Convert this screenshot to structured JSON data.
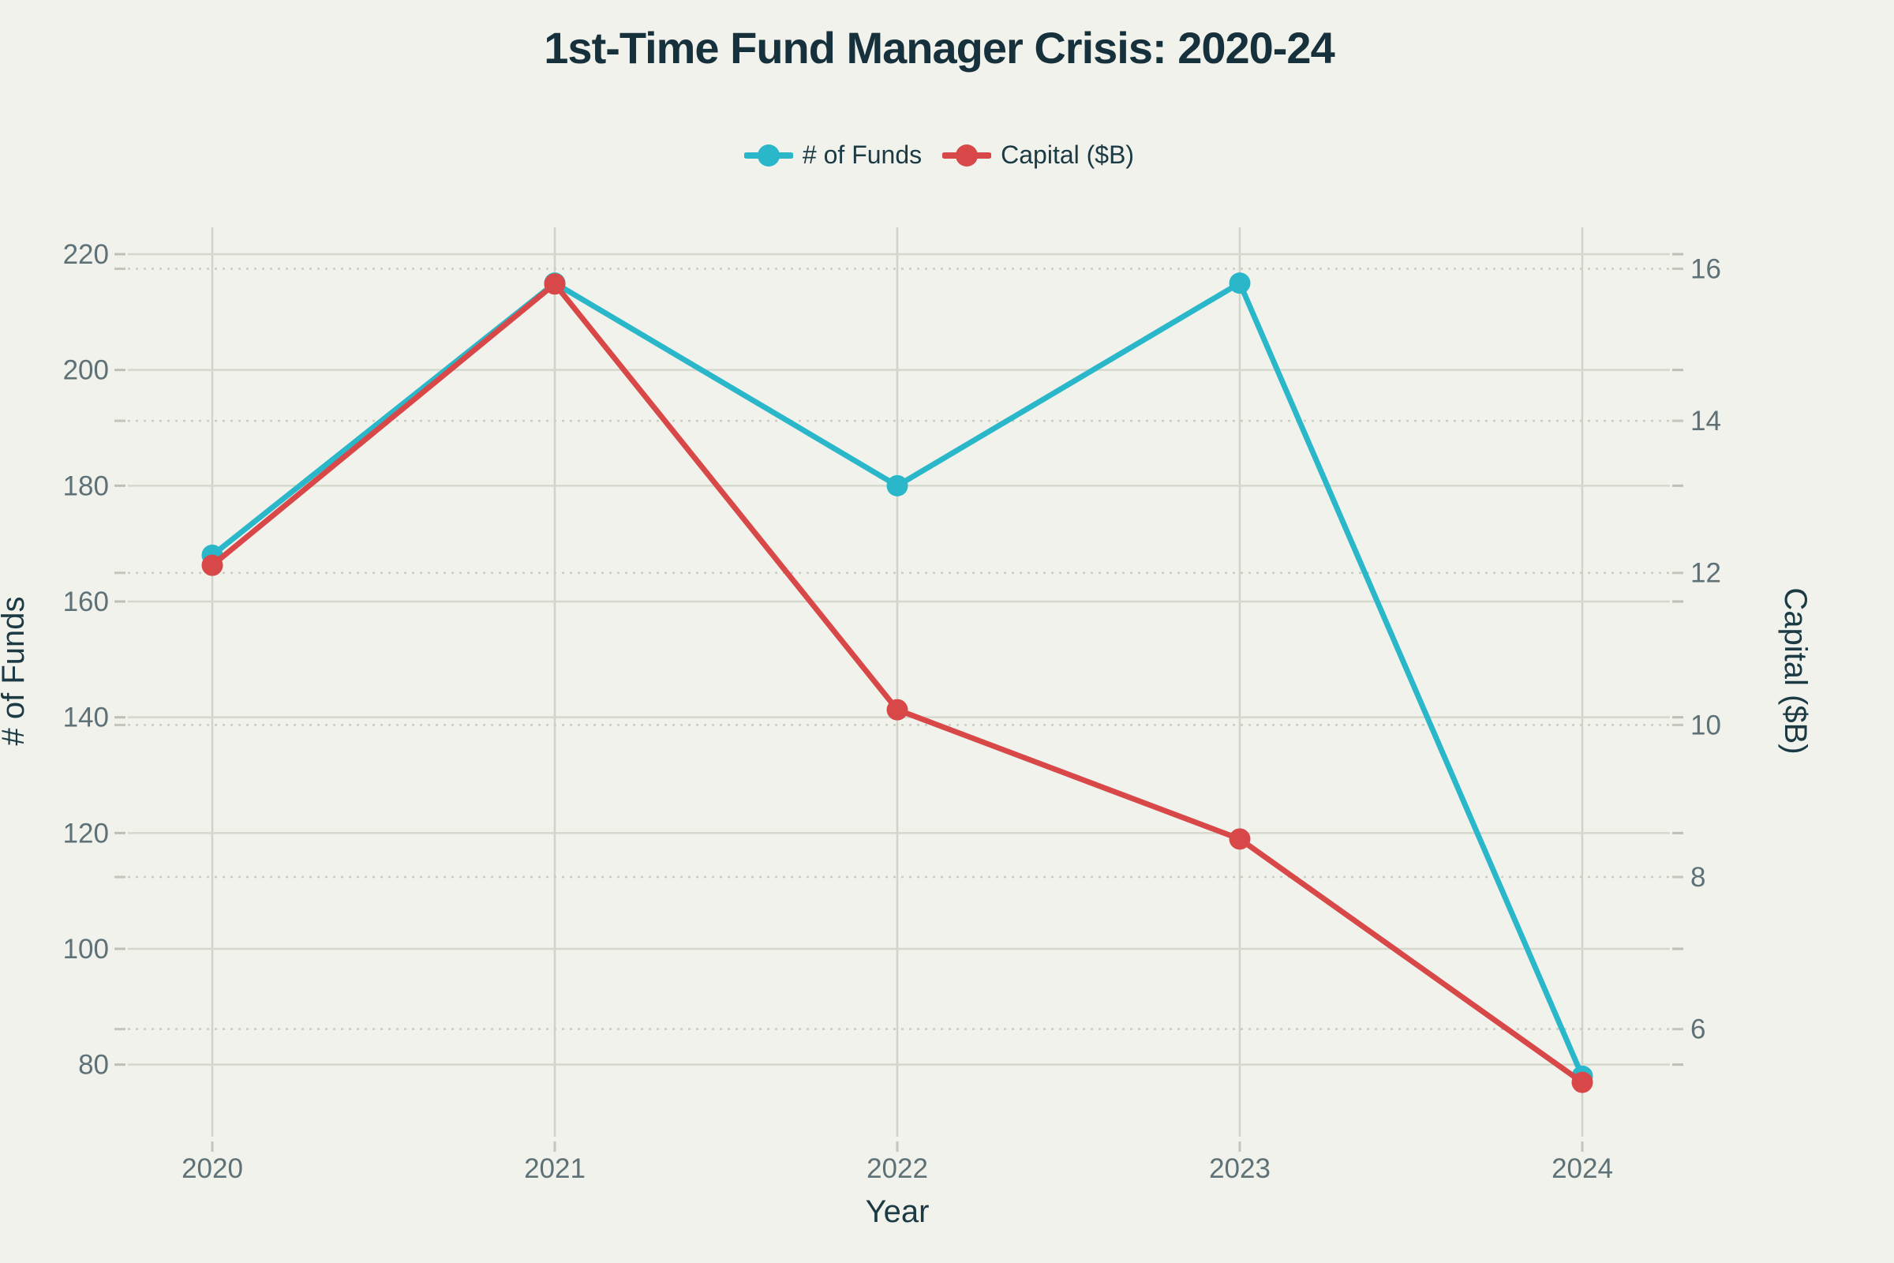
{
  "chart_data": {
    "type": "line",
    "title": "1st-Time Fund Manager Crisis: 2020-24",
    "xlabel": "Year",
    "categories": [
      "2020",
      "2021",
      "2022",
      "2023",
      "2024"
    ],
    "series": [
      {
        "name": "# of Funds",
        "axis": "left",
        "color": "#2ab7c9",
        "values": [
          168,
          215,
          180,
          215,
          78
        ]
      },
      {
        "name": "Capital ($B)",
        "axis": "right",
        "color": "#d94848",
        "values": [
          12.1,
          15.8,
          10.2,
          8.5,
          5.3
        ]
      }
    ],
    "axes": {
      "left": {
        "label": "# of Funds",
        "ticks": [
          220,
          200,
          180,
          160,
          140,
          120,
          100,
          80
        ],
        "range": [
          73,
          223
        ]
      },
      "right": {
        "label": "Capital ($B)",
        "ticks": [
          16,
          14,
          12,
          10,
          8,
          6
        ],
        "range": [
          5.0,
          16.42
        ]
      }
    },
    "grid": true,
    "legend_position": "top"
  },
  "style": {
    "background": "#f1f2ec",
    "title_color": "#16313b",
    "tick_label_color": "#5e7176",
    "axis_title_color": "#1b3a44",
    "funds_color": "#2ab7c9",
    "capital_color": "#d94848"
  }
}
